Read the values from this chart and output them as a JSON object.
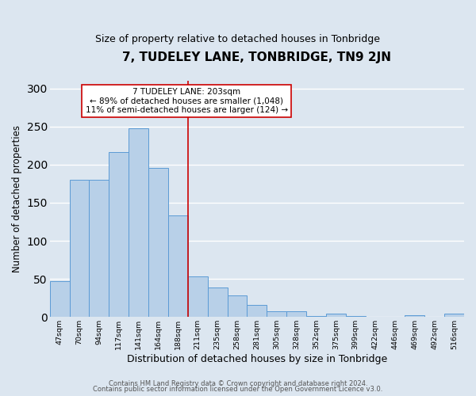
{
  "title": "7, TUDELEY LANE, TONBRIDGE, TN9 2JN",
  "subtitle": "Size of property relative to detached houses in Tonbridge",
  "xlabel": "Distribution of detached houses by size in Tonbridge",
  "ylabel": "Number of detached properties",
  "footer_lines": [
    "Contains HM Land Registry data © Crown copyright and database right 2024.",
    "Contains public sector information licensed under the Open Government Licence v3.0."
  ],
  "categories": [
    "47sqm",
    "70sqm",
    "94sqm",
    "117sqm",
    "141sqm",
    "164sqm",
    "188sqm",
    "211sqm",
    "235sqm",
    "258sqm",
    "281sqm",
    "305sqm",
    "328sqm",
    "352sqm",
    "375sqm",
    "399sqm",
    "422sqm",
    "446sqm",
    "469sqm",
    "492sqm",
    "516sqm"
  ],
  "values": [
    47,
    180,
    180,
    216,
    248,
    196,
    133,
    53,
    39,
    28,
    16,
    8,
    8,
    1,
    4,
    1,
    0,
    0,
    2,
    0,
    4
  ],
  "bar_color": "#b8d0e8",
  "bar_edge_color": "#5b9bd5",
  "background_color": "#dce6f0",
  "grid_color": "#ffffff",
  "annotation_box_color": "#ffffff",
  "annotation_border_color": "#cc0000",
  "vline_color": "#cc0000",
  "vline_x_index": 7,
  "annotation_text_line1": "7 TUDELEY LANE: 203sqm",
  "annotation_text_line2": "← 89% of detached houses are smaller (1,048)",
  "annotation_text_line3": "11% of semi-detached houses are larger (124) →",
  "ylim": [
    0,
    310
  ],
  "yticks": [
    0,
    50,
    100,
    150,
    200,
    250,
    300
  ],
  "title_fontsize": 11,
  "subtitle_fontsize": 9,
  "xlabel_fontsize": 9,
  "ylabel_fontsize": 8.5
}
